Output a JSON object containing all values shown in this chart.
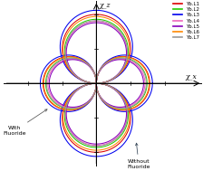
{
  "legend_labels": [
    "Yb.L1",
    "Yb.L2",
    "Yb.L3",
    "Yb.L4",
    "Yb.L5",
    "Yb.L6",
    "Yb.L7"
  ],
  "colors": [
    "#dd0000",
    "#22cc00",
    "#0000ee",
    "#ee66bb",
    "#8800bb",
    "#ff8800",
    "#999999"
  ],
  "annotation_with": "With\nFluoride",
  "annotation_without": "Without\nFluoride",
  "background_color": "#ffffff",
  "series": [
    {
      "A_no": 1.0,
      "n_no": 1.5,
      "A_with": 0.78,
      "n_with": 0.6
    },
    {
      "A_no": 0.93,
      "n_no": 1.5,
      "A_with": 0.74,
      "n_with": 0.6
    },
    {
      "A_no": 1.06,
      "n_no": 1.5,
      "A_with": 0.82,
      "n_with": 0.6
    },
    {
      "A_no": 0.9,
      "n_no": 1.5,
      "A_with": 0.71,
      "n_with": 0.6
    },
    {
      "A_no": 0.88,
      "n_no": 1.5,
      "A_with": 0.69,
      "n_with": 0.6
    },
    {
      "A_no": 0.97,
      "n_no": 1.5,
      "A_with": 0.77,
      "n_with": 0.6
    },
    {
      "A_no": 0.91,
      "n_no": 1.5,
      "A_with": 0.73,
      "n_with": 0.6
    }
  ],
  "xlim": [
    -1.35,
    1.55
  ],
  "ylim": [
    -1.2,
    1.2
  ],
  "axis_label_x": "χ_x",
  "axis_label_z": "χ_z"
}
